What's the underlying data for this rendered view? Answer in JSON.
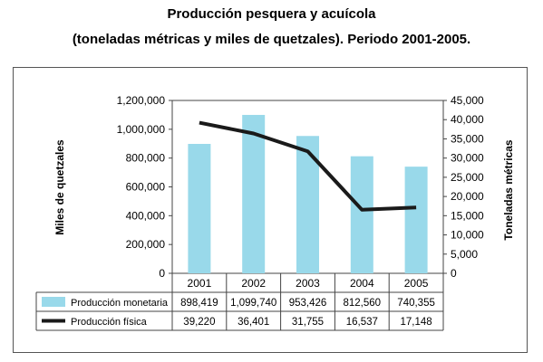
{
  "page": {
    "title": "Producción pesquera y acuícola",
    "subtitle": "(toneladas métricas y miles de quetzales). Periodo 2001-2005."
  },
  "chart_data": {
    "type": "bar",
    "title": "Producción pesquera y acuícola",
    "subtitle": "(toneladas métricas y miles de quetzales). Periodo 2001-2005.",
    "categories": [
      "2001",
      "2002",
      "2003",
      "2004",
      "2005"
    ],
    "ylabel_left": "Miles de quetzales",
    "ylabel_right": "Toneladas métricas",
    "ylim_left": [
      0,
      1200000
    ],
    "ylim_right": [
      0,
      45000
    ],
    "yticks_left": [
      "0",
      "200,000",
      "400,000",
      "600,000",
      "800,000",
      "1,000,000",
      "1,200,000"
    ],
    "yticks_right": [
      "0",
      "5,000",
      "10,000",
      "15,000",
      "20,000",
      "25,000",
      "30,000",
      "35,000",
      "40,000",
      "45,000"
    ],
    "grid": false,
    "legend_placement": "data table below chart",
    "series": [
      {
        "name": "Producción monetaria",
        "type": "bar",
        "axis": "left",
        "color": "#99d9ea",
        "values": [
          898419,
          1099740,
          953426,
          812560,
          740355
        ],
        "table_labels": [
          "898,419",
          "1,099,740",
          "953,426",
          "812,560",
          "740,355"
        ]
      },
      {
        "name": "Producción física",
        "type": "line",
        "axis": "right",
        "color": "#1a1a1a",
        "values": [
          39220,
          36401,
          31755,
          16537,
          17148
        ],
        "table_labels": [
          "39,220",
          "36,401",
          "31,755",
          "16,537",
          "17,148"
        ]
      }
    ]
  }
}
